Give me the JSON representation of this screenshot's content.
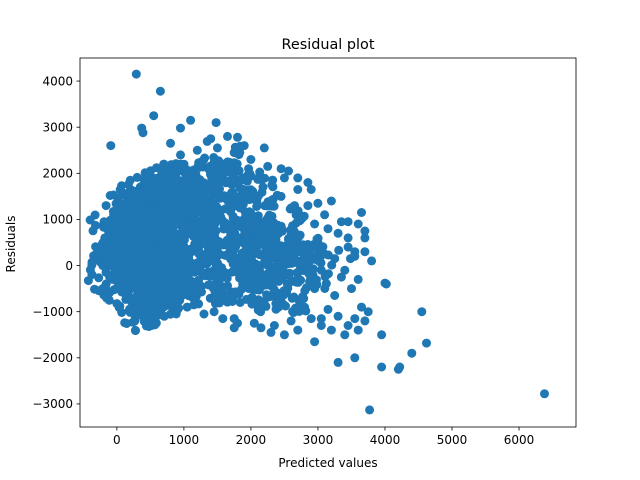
{
  "chart_data": {
    "type": "scatter",
    "title": "Residual plot",
    "xlabel": "Predicted values",
    "ylabel": "Residuals",
    "xlim": [
      -550,
      6850
    ],
    "ylim": [
      -3500,
      4500
    ],
    "xticks": [
      0,
      1000,
      2000,
      3000,
      4000,
      5000,
      6000
    ],
    "yticks": [
      -3000,
      -2000,
      -1000,
      0,
      1000,
      2000,
      3000,
      4000
    ],
    "xtick_labels": [
      "0",
      "1000",
      "2000",
      "3000",
      "4000",
      "5000",
      "6000"
    ],
    "ytick_labels": [
      "−3000",
      "−2000",
      "−1000",
      "0",
      "1000",
      "2000",
      "3000",
      "4000"
    ],
    "grid": false,
    "marker_color": "#1f77b4",
    "series": [
      {
        "points": [
          [
            290,
            4150
          ],
          [
            650,
            3780
          ],
          [
            550,
            3250
          ],
          [
            1100,
            3150
          ],
          [
            1480,
            3100
          ],
          [
            950,
            2980
          ],
          [
            370,
            2980
          ],
          [
            390,
            2880
          ],
          [
            -90,
            2600
          ],
          [
            800,
            2650
          ],
          [
            1400,
            2750
          ],
          [
            1650,
            2800
          ],
          [
            1800,
            2780
          ],
          [
            2200,
            2550
          ],
          [
            1900,
            2600
          ],
          [
            -100,
            1520
          ],
          [
            -50,
            1530
          ],
          [
            2450,
            2100
          ],
          [
            2560,
            2050
          ],
          [
            2700,
            1900
          ],
          [
            2850,
            1800
          ],
          [
            2900,
            1650
          ],
          [
            3000,
            1350
          ],
          [
            3100,
            1100
          ],
          [
            3200,
            1400
          ],
          [
            3350,
            950
          ],
          [
            3450,
            600
          ],
          [
            3550,
            300
          ],
          [
            3300,
            700
          ],
          [
            3150,
            800
          ],
          [
            3000,
            500
          ],
          [
            3450,
            950
          ],
          [
            3600,
            900
          ],
          [
            3700,
            750
          ],
          [
            3700,
            600
          ],
          [
            3450,
            400
          ],
          [
            3550,
            200
          ],
          [
            3700,
            300
          ],
          [
            3400,
            -100
          ],
          [
            3600,
            -300
          ],
          [
            3500,
            -500
          ],
          [
            3650,
            -900
          ],
          [
            3750,
            -1000
          ],
          [
            3550,
            -1150
          ],
          [
            3700,
            -1200
          ],
          [
            3450,
            -1300
          ],
          [
            3600,
            -1400
          ],
          [
            3400,
            -1500
          ],
          [
            3200,
            -1400
          ],
          [
            3050,
            -1300
          ],
          [
            3950,
            -1500
          ],
          [
            3300,
            -2100
          ],
          [
            3550,
            -2000
          ],
          [
            3950,
            -2200
          ],
          [
            4200,
            -2250
          ],
          [
            4220,
            -2200
          ],
          [
            4400,
            -1900
          ],
          [
            4020,
            -400
          ],
          [
            4000,
            -380
          ],
          [
            4550,
            -1000
          ],
          [
            4620,
            -1680
          ],
          [
            3770,
            -3130
          ],
          [
            6380,
            -2780
          ],
          [
            2950,
            -1650
          ],
          [
            2700,
            -1400
          ],
          [
            2500,
            -1500
          ],
          [
            2300,
            -1450
          ],
          [
            2150,
            -1350
          ],
          [
            1800,
            -1250
          ],
          [
            1580,
            -1150
          ],
          [
            1750,
            -1350
          ],
          [
            1300,
            -1050
          ],
          [
            1050,
            -900
          ],
          [
            850,
            -750
          ],
          [
            550,
            -550
          ],
          [
            300,
            -350
          ],
          [
            100,
            -100
          ],
          [
            -100,
            50
          ],
          [
            -150,
            250
          ],
          [
            -180,
            600
          ],
          [
            -190,
            950
          ],
          [
            -160,
            1300
          ],
          [
            50,
            1650
          ],
          [
            200,
            1850
          ],
          [
            450,
            2000
          ],
          [
            700,
            2200
          ],
          [
            950,
            2400
          ],
          [
            1200,
            2500
          ],
          [
            1500,
            2550
          ],
          [
            1750,
            2450
          ],
          [
            2000,
            2300
          ],
          [
            2250,
            2150
          ],
          [
            2500,
            1900
          ],
          [
            2700,
            1650
          ],
          [
            2850,
            1300
          ],
          [
            2950,
            900
          ],
          [
            3050,
            400
          ],
          [
            3050,
            -100
          ],
          [
            2950,
            -500
          ],
          [
            2800,
            -900
          ],
          [
            2600,
            -1200
          ],
          [
            2350,
            -1300
          ],
          [
            2050,
            -1250
          ],
          [
            1750,
            -1150
          ],
          [
            1450,
            -1000
          ],
          [
            1150,
            -850
          ],
          [
            850,
            -650
          ],
          [
            550,
            -400
          ],
          [
            250,
            -150
          ],
          [
            3250,
            150
          ],
          [
            3100,
            250
          ],
          [
            3350,
            -250
          ],
          [
            3250,
            -650
          ],
          [
            3150,
            -950
          ],
          [
            3300,
            -1100
          ],
          [
            3050,
            -1150
          ],
          [
            2900,
            -1150
          ],
          [
            3800,
            100
          ],
          [
            3650,
            1150
          ],
          [
            2650,
            1300
          ],
          [
            2750,
            1050
          ],
          [
            2450,
            1500
          ]
        ],
        "clusters": [
          [
            [
              -150,
              600
            ],
            [
              350,
              1000
            ],
            [
              150,
              -280
            ],
            [
              500,
              1500
            ],
            [
              -50,
              400
            ],
            [
              600,
              100
            ],
            [
              -100,
              -100
            ],
            [
              250,
              300
            ]
          ],
          [
            [
              400,
              950
            ],
            [
              500,
              1400
            ],
            [
              300,
              800
            ],
            [
              250,
              1100
            ],
            [
              200,
              500
            ],
            [
              250,
              600
            ],
            [
              100,
              0
            ],
            [
              400,
              200
            ]
          ],
          [
            [
              1000,
              800
            ],
            [
              650,
              1600
            ],
            [
              400,
              1150
            ],
            [
              400,
              -300
            ],
            [
              500,
              850
            ],
            [
              550,
              1300
            ],
            [
              450,
              -500
            ],
            [
              600,
              550
            ]
          ],
          [
            [
              1500,
              700
            ],
            [
              700,
              1500
            ],
            [
              800,
              1550
            ],
            [
              650,
              -450
            ],
            [
              500,
              1100
            ],
            [
              600,
              1200
            ],
            [
              550,
              -500
            ],
            [
              700,
              400
            ]
          ],
          [
            [
              1900,
              500
            ],
            [
              650,
              1400
            ],
            [
              1000,
              1200
            ],
            [
              750,
              -500
            ],
            [
              400,
              1350
            ],
            [
              450,
              1000
            ],
            [
              550,
              -600
            ],
            [
              500,
              300
            ]
          ],
          [
            [
              2400,
              300
            ],
            [
              500,
              1250
            ],
            [
              2250,
              200
            ],
            [
              550,
              -700
            ],
            [
              350,
              1000
            ],
            [
              400,
              800
            ],
            [
              400,
              -700
            ],
            [
              350,
              500
            ]
          ],
          [
            [
              2800,
              150
            ],
            [
              300,
              1000
            ],
            [
              2650,
              0
            ],
            [
              350,
              -800
            ],
            [
              200,
              700
            ],
            [
              250,
              600
            ],
            [
              250,
              -900
            ],
            [
              250,
              200
            ]
          ],
          [
            [
              3100,
              0
            ],
            [
              200,
              650
            ],
            [
              1200,
              2000
            ],
            [
              200,
              500
            ],
            [
              1600,
              2200
            ],
            [
              250,
              400
            ],
            [
              1400,
              -400
            ],
            [
              250,
              300
            ]
          ]
        ]
      }
    ]
  }
}
